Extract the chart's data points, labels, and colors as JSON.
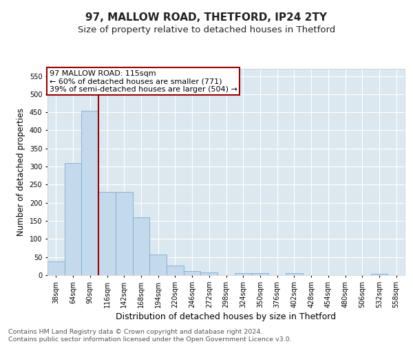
{
  "title": "97, MALLOW ROAD, THETFORD, IP24 2TY",
  "subtitle": "Size of property relative to detached houses in Thetford",
  "xlabel": "Distribution of detached houses by size in Thetford",
  "ylabel": "Number of detached properties",
  "bin_labels": [
    "38sqm",
    "64sqm",
    "90sqm",
    "116sqm",
    "142sqm",
    "168sqm",
    "194sqm",
    "220sqm",
    "246sqm",
    "272sqm",
    "298sqm",
    "324sqm",
    "350sqm",
    "376sqm",
    "402sqm",
    "428sqm",
    "454sqm",
    "480sqm",
    "506sqm",
    "532sqm",
    "558sqm"
  ],
  "bin_starts": [
    38,
    64,
    90,
    116,
    142,
    168,
    194,
    220,
    246,
    272,
    298,
    324,
    350,
    376,
    402,
    428,
    454,
    480,
    506,
    532,
    558
  ],
  "bin_width": 26,
  "bar_heights": [
    38,
    310,
    455,
    230,
    230,
    160,
    57,
    27,
    12,
    8,
    0,
    5,
    5,
    0,
    5,
    0,
    0,
    0,
    0,
    4,
    0
  ],
  "bar_color": "#c5d9ed",
  "bar_edge_color": "#7aabce",
  "vline_x": 116,
  "vline_color": "#990000",
  "annotation_line1": "97 MALLOW ROAD: 115sqm",
  "annotation_line2": "← 60% of detached houses are smaller (771)",
  "annotation_line3": "39% of semi-detached houses are larger (504) →",
  "annotation_box_color": "#990000",
  "ylim": [
    0,
    570
  ],
  "yticks": [
    0,
    50,
    100,
    150,
    200,
    250,
    300,
    350,
    400,
    450,
    500,
    550
  ],
  "xlim_left": 38,
  "xlim_right": 584,
  "bg_color": "#dce8f0",
  "grid_color": "#ffffff",
  "fig_bg": "#ffffff",
  "footer_line1": "Contains HM Land Registry data © Crown copyright and database right 2024.",
  "footer_line2": "Contains public sector information licensed under the Open Government Licence v3.0.",
  "title_fontsize": 11,
  "subtitle_fontsize": 9.5,
  "xlabel_fontsize": 9,
  "ylabel_fontsize": 8.5,
  "tick_fontsize": 7,
  "annotation_fontsize": 8,
  "footer_fontsize": 6.8
}
